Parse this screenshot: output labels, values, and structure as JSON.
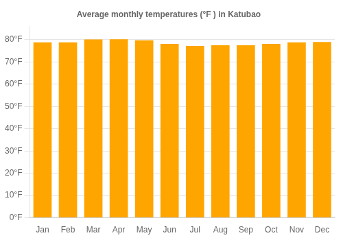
{
  "chart_data": {
    "type": "bar",
    "title": "Average monthly temperatures (°F ) in Katubao",
    "categories": [
      "Jan",
      "Feb",
      "Mar",
      "Apr",
      "May",
      "Jun",
      "Jul",
      "Aug",
      "Sep",
      "Oct",
      "Nov",
      "Dec"
    ],
    "values": [
      78.8,
      78.8,
      80.1,
      80.2,
      79.7,
      78.1,
      77.2,
      77.5,
      77.5,
      78.1,
      78.8,
      79.0
    ],
    "color": "#FFA500",
    "ylim": [
      0,
      86
    ],
    "yticks": [
      {
        "value": 0,
        "label": "0°F"
      },
      {
        "value": 10,
        "label": "10°F"
      },
      {
        "value": 20,
        "label": "20°F"
      },
      {
        "value": 30,
        "label": "30°F"
      },
      {
        "value": 40,
        "label": "40°F"
      },
      {
        "value": 50,
        "label": "50°F"
      },
      {
        "value": 60,
        "label": "60°F"
      },
      {
        "value": 70,
        "label": "70°F"
      },
      {
        "value": 80,
        "label": "80°F"
      }
    ],
    "grid": true
  }
}
